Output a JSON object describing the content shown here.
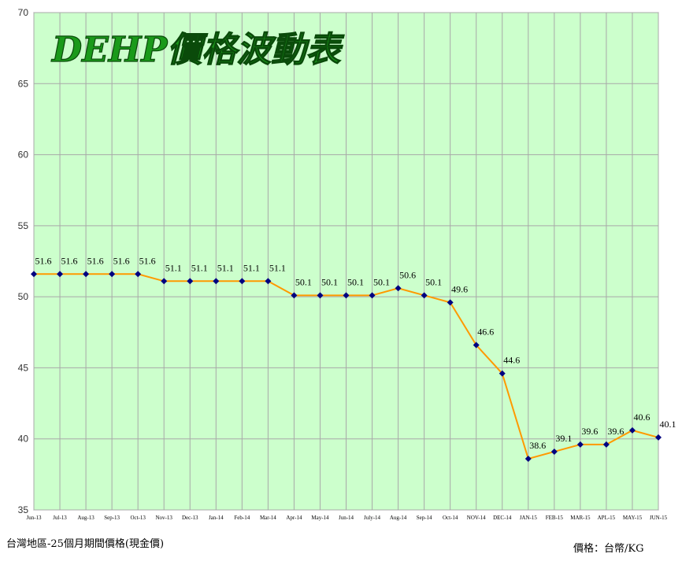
{
  "chart_data": {
    "type": "line",
    "title": "DEHP價格波動表",
    "ylim": [
      35,
      70
    ],
    "yticks": [
      35,
      40,
      45,
      50,
      55,
      60,
      65,
      70
    ],
    "grid": true,
    "categories": [
      "Jun-13",
      "Jul-13",
      "Aug-13",
      "Sep-13",
      "Oct-13",
      "Nov-13",
      "Dec-13",
      "Jan-14",
      "Feb-14",
      "Mar-14",
      "Apr-14",
      "May-14",
      "Jun-14",
      "July-14",
      "Aug-14",
      "Sep-14",
      "Oct-14",
      "NOV-14",
      "DEC-14",
      "JAN-15",
      "FEB-15",
      "MAR-15",
      "APL-15",
      "MAY-15",
      "JUN-15"
    ],
    "series": [
      {
        "values": [
          51.6,
          51.6,
          51.6,
          51.6,
          51.6,
          51.1,
          51.1,
          51.1,
          51.1,
          51.1,
          50.1,
          50.1,
          50.1,
          50.1,
          50.6,
          50.1,
          49.6,
          46.6,
          44.6,
          38.6,
          39.1,
          39.6,
          39.6,
          40.6,
          40.1
        ],
        "labels": [
          "51.6",
          "51.6",
          "51.6",
          "51.6",
          "51.6",
          "51.1",
          "51.1",
          "51.1",
          "51.1",
          "51.1",
          "50.1",
          "50.1",
          "50.1",
          "50.1",
          "50.6",
          "50.1",
          "49.6",
          "46.6",
          "44.6",
          "38.6",
          "39.1",
          "39.6",
          "39.6",
          "40.6",
          "40.1"
        ]
      }
    ],
    "colors": {
      "plot_bg": "#ccffcc",
      "grid": "#a8a8a8",
      "line": "#ff9900",
      "marker": "#000080",
      "title_fill": "#1a9a1a"
    }
  },
  "footer": {
    "left": "台灣地區-25個月期間價格(現金價)",
    "right": "價格：台幣/KG"
  }
}
